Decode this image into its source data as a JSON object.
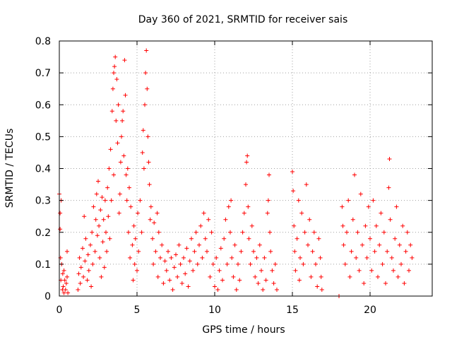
{
  "chart_data": {
    "type": "scatter",
    "title": "Day 360 of 2021, SRMTID for receiver sais",
    "xlabel": "GPS time / hours",
    "ylabel": "SRMTID / TECUs",
    "xlim": [
      0,
      24
    ],
    "ylim": [
      0,
      0.8
    ],
    "xticks": [
      0,
      5,
      10,
      15,
      20
    ],
    "yticks": [
      0,
      0.1,
      0.2,
      0.3,
      0.4,
      0.5,
      0.6,
      0.7,
      0.8
    ],
    "grid": true,
    "marker": "+",
    "colors": {
      "series": "#ff0000",
      "axes": "#000000",
      "grid": "#a0a0a0"
    },
    "series": [
      {
        "name": "SRMTID",
        "points": [
          [
            0.0,
            0.32
          ],
          [
            0.05,
            0.26
          ],
          [
            0.05,
            0.21
          ],
          [
            0.08,
            0.12
          ],
          [
            0.1,
            0.05
          ],
          [
            0.12,
            0.3
          ],
          [
            0.15,
            0.1
          ],
          [
            0.2,
            0.02
          ],
          [
            0.22,
            0.07
          ],
          [
            0.25,
            0.03
          ],
          [
            0.3,
            0.08
          ],
          [
            0.3,
            0.01
          ],
          [
            0.35,
            0.05
          ],
          [
            0.4,
            0.02
          ],
          [
            0.45,
            0.04
          ],
          [
            0.5,
            0.14
          ],
          [
            0.5,
            0.06
          ],
          [
            0.55,
            0.01
          ],
          [
            1.2,
            0.02
          ],
          [
            1.25,
            0.07
          ],
          [
            1.3,
            0.12
          ],
          [
            1.35,
            0.04
          ],
          [
            1.4,
            0.09
          ],
          [
            1.5,
            0.15
          ],
          [
            1.55,
            0.06
          ],
          [
            1.6,
            0.25
          ],
          [
            1.65,
            0.11
          ],
          [
            1.7,
            0.18
          ],
          [
            1.8,
            0.05
          ],
          [
            1.85,
            0.13
          ],
          [
            1.9,
            0.08
          ],
          [
            2.0,
            0.16
          ],
          [
            2.05,
            0.03
          ],
          [
            2.1,
            0.2
          ],
          [
            2.15,
            0.1
          ],
          [
            2.2,
            0.28
          ],
          [
            2.3,
            0.14
          ],
          [
            2.35,
            0.24
          ],
          [
            2.4,
            0.32
          ],
          [
            2.45,
            0.19
          ],
          [
            2.5,
            0.36
          ],
          [
            2.55,
            0.22
          ],
          [
            2.6,
            0.12
          ],
          [
            2.65,
            0.27
          ],
          [
            2.7,
            0.06
          ],
          [
            2.75,
            0.31
          ],
          [
            2.8,
            0.17
          ],
          [
            2.85,
            0.24
          ],
          [
            2.9,
            0.09
          ],
          [
            2.95,
            0.3
          ],
          [
            3.0,
            0.2
          ],
          [
            3.05,
            0.14
          ],
          [
            3.1,
            0.34
          ],
          [
            3.15,
            0.25
          ],
          [
            3.2,
            0.4
          ],
          [
            3.25,
            0.18
          ],
          [
            3.3,
            0.46
          ],
          [
            3.35,
            0.3
          ],
          [
            3.4,
            0.58
          ],
          [
            3.45,
            0.65
          ],
          [
            3.5,
            0.7
          ],
          [
            3.5,
            0.38
          ],
          [
            3.55,
            0.72
          ],
          [
            3.6,
            0.75
          ],
          [
            3.65,
            0.55
          ],
          [
            3.7,
            0.68
          ],
          [
            3.75,
            0.48
          ],
          [
            3.8,
            0.6
          ],
          [
            3.85,
            0.26
          ],
          [
            3.9,
            0.32
          ],
          [
            3.95,
            0.42
          ],
          [
            4.0,
            0.5
          ],
          [
            4.05,
            0.55
          ],
          [
            4.1,
            0.58
          ],
          [
            4.15,
            0.44
          ],
          [
            4.2,
            0.74
          ],
          [
            4.25,
            0.63
          ],
          [
            4.3,
            0.38
          ],
          [
            4.35,
            0.3
          ],
          [
            4.4,
            0.4
          ],
          [
            4.45,
            0.2
          ],
          [
            4.5,
            0.34
          ],
          [
            4.55,
            0.12
          ],
          [
            4.6,
            0.28
          ],
          [
            4.7,
            0.16
          ],
          [
            4.75,
            0.05
          ],
          [
            4.8,
            0.22
          ],
          [
            4.85,
            0.1
          ],
          [
            4.9,
            0.18
          ],
          [
            5.0,
            0.08
          ],
          [
            5.05,
            0.26
          ],
          [
            5.1,
            0.14
          ],
          [
            5.2,
            0.3
          ],
          [
            5.3,
            0.2
          ],
          [
            5.35,
            0.45
          ],
          [
            5.4,
            0.52
          ],
          [
            5.45,
            0.4
          ],
          [
            5.5,
            0.6
          ],
          [
            5.55,
            0.7
          ],
          [
            5.6,
            0.77
          ],
          [
            5.65,
            0.65
          ],
          [
            5.7,
            0.5
          ],
          [
            5.75,
            0.42
          ],
          [
            5.8,
            0.35
          ],
          [
            5.85,
            0.24
          ],
          [
            5.9,
            0.28
          ],
          [
            6.0,
            0.18
          ],
          [
            6.05,
            0.1
          ],
          [
            6.1,
            0.23
          ],
          [
            6.2,
            0.14
          ],
          [
            6.3,
            0.26
          ],
          [
            6.35,
            0.06
          ],
          [
            6.4,
            0.2
          ],
          [
            6.5,
            0.12
          ],
          [
            6.6,
            0.16
          ],
          [
            6.7,
            0.04
          ],
          [
            6.8,
            0.11
          ],
          [
            6.9,
            0.08
          ],
          [
            7.0,
            0.14
          ],
          [
            7.1,
            0.05
          ],
          [
            7.2,
            0.12
          ],
          [
            7.3,
            0.02
          ],
          [
            7.4,
            0.09
          ],
          [
            7.5,
            0.13
          ],
          [
            7.6,
            0.06
          ],
          [
            7.7,
            0.16
          ],
          [
            7.8,
            0.1
          ],
          [
            7.9,
            0.04
          ],
          [
            8.0,
            0.12
          ],
          [
            8.1,
            0.07
          ],
          [
            8.2,
            0.15
          ],
          [
            8.3,
            0.03
          ],
          [
            8.4,
            0.11
          ],
          [
            8.5,
            0.18
          ],
          [
            8.6,
            0.08
          ],
          [
            8.7,
            0.14
          ],
          [
            8.8,
            0.2
          ],
          [
            8.9,
            0.1
          ],
          [
            9.0,
            0.16
          ],
          [
            9.1,
            0.22
          ],
          [
            9.2,
            0.12
          ],
          [
            9.3,
            0.26
          ],
          [
            9.4,
            0.18
          ],
          [
            9.5,
            0.14
          ],
          [
            9.6,
            0.24
          ],
          [
            9.7,
            0.06
          ],
          [
            9.8,
            0.2
          ],
          [
            9.9,
            0.1
          ],
          [
            10.0,
            0.03
          ],
          [
            10.1,
            0.12
          ],
          [
            10.2,
            0.02
          ],
          [
            10.3,
            0.08
          ],
          [
            10.4,
            0.15
          ],
          [
            10.5,
            0.05
          ],
          [
            10.6,
            0.18
          ],
          [
            10.7,
            0.24
          ],
          [
            10.8,
            0.1
          ],
          [
            10.9,
            0.28
          ],
          [
            11.0,
            0.2
          ],
          [
            11.05,
            0.3
          ],
          [
            11.1,
            0.12
          ],
          [
            11.2,
            0.06
          ],
          [
            11.3,
            0.16
          ],
          [
            11.4,
            0.02
          ],
          [
            11.5,
            0.1
          ],
          [
            11.6,
            0.05
          ],
          [
            11.7,
            0.14
          ],
          [
            11.8,
            0.2
          ],
          [
            11.9,
            0.26
          ],
          [
            12.0,
            0.35
          ],
          [
            12.05,
            0.42
          ],
          [
            12.1,
            0.44
          ],
          [
            12.15,
            0.28
          ],
          [
            12.2,
            0.18
          ],
          [
            12.3,
            0.1
          ],
          [
            12.4,
            0.22
          ],
          [
            12.5,
            0.14
          ],
          [
            12.6,
            0.06
          ],
          [
            12.7,
            0.12
          ],
          [
            12.8,
            0.04
          ],
          [
            12.9,
            0.16
          ],
          [
            13.0,
            0.08
          ],
          [
            13.1,
            0.02
          ],
          [
            13.2,
            0.12
          ],
          [
            13.3,
            0.05
          ],
          [
            13.4,
            0.26
          ],
          [
            13.45,
            0.3
          ],
          [
            13.5,
            0.38
          ],
          [
            13.55,
            0.2
          ],
          [
            13.6,
            0.14
          ],
          [
            13.7,
            0.08
          ],
          [
            13.8,
            0.04
          ],
          [
            13.9,
            0.1
          ],
          [
            14.0,
            0.02
          ],
          [
            15.0,
            0.39
          ],
          [
            15.05,
            0.33
          ],
          [
            15.1,
            0.22
          ],
          [
            15.15,
            0.14
          ],
          [
            15.2,
            0.08
          ],
          [
            15.3,
            0.18
          ],
          [
            15.4,
            0.3
          ],
          [
            15.45,
            0.05
          ],
          [
            15.5,
            0.12
          ],
          [
            15.6,
            0.26
          ],
          [
            15.7,
            0.1
          ],
          [
            15.8,
            0.2
          ],
          [
            15.9,
            0.35
          ],
          [
            16.0,
            0.16
          ],
          [
            16.1,
            0.24
          ],
          [
            16.2,
            0.06
          ],
          [
            16.3,
            0.14
          ],
          [
            16.4,
            0.2
          ],
          [
            16.5,
            0.1
          ],
          [
            16.6,
            0.03
          ],
          [
            16.7,
            0.18
          ],
          [
            16.8,
            0.12
          ],
          [
            16.85,
            0.06
          ],
          [
            16.9,
            0.02
          ],
          [
            18.0,
            0.0
          ],
          [
            18.2,
            0.28
          ],
          [
            18.25,
            0.22
          ],
          [
            18.3,
            0.16
          ],
          [
            18.4,
            0.1
          ],
          [
            18.5,
            0.2
          ],
          [
            18.6,
            0.3
          ],
          [
            18.7,
            0.06
          ],
          [
            18.8,
            0.14
          ],
          [
            18.9,
            0.24
          ],
          [
            19.0,
            0.38
          ],
          [
            19.1,
            0.12
          ],
          [
            19.2,
            0.2
          ],
          [
            19.3,
            0.08
          ],
          [
            19.4,
            0.32
          ],
          [
            19.5,
            0.16
          ],
          [
            19.6,
            0.04
          ],
          [
            19.7,
            0.22
          ],
          [
            19.8,
            0.12
          ],
          [
            19.9,
            0.28
          ],
          [
            20.0,
            0.18
          ],
          [
            20.1,
            0.08
          ],
          [
            20.2,
            0.3
          ],
          [
            20.3,
            0.14
          ],
          [
            20.4,
            0.22
          ],
          [
            20.5,
            0.06
          ],
          [
            20.6,
            0.16
          ],
          [
            20.7,
            0.26
          ],
          [
            20.8,
            0.1
          ],
          [
            20.9,
            0.2
          ],
          [
            21.0,
            0.04
          ],
          [
            21.1,
            0.14
          ],
          [
            21.2,
            0.34
          ],
          [
            21.25,
            0.43
          ],
          [
            21.3,
            0.24
          ],
          [
            21.4,
            0.12
          ],
          [
            21.5,
            0.08
          ],
          [
            21.6,
            0.18
          ],
          [
            21.7,
            0.28
          ],
          [
            21.8,
            0.06
          ],
          [
            21.9,
            0.16
          ],
          [
            22.0,
            0.1
          ],
          [
            22.1,
            0.22
          ],
          [
            22.2,
            0.04
          ],
          [
            22.3,
            0.14
          ],
          [
            22.4,
            0.2
          ],
          [
            22.5,
            0.08
          ],
          [
            22.6,
            0.16
          ],
          [
            22.7,
            0.12
          ]
        ]
      }
    ]
  }
}
